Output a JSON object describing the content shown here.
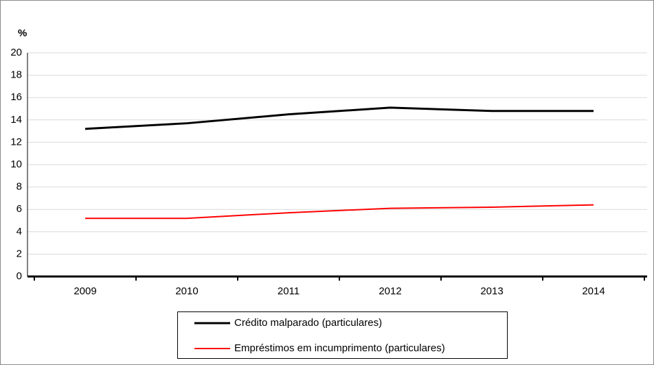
{
  "chart_data": {
    "type": "line",
    "y_label": "%",
    "categories": [
      "2009",
      "2010",
      "2011",
      "2012",
      "2013",
      "2014"
    ],
    "series": [
      {
        "name": "Crédito malparado (particulares)",
        "color": "#000000",
        "values": [
          13.2,
          13.7,
          14.5,
          15.1,
          14.8,
          14.8
        ]
      },
      {
        "name": "Empréstimos em incumprimento (particulares)",
        "color": "#ff0000",
        "values": [
          5.2,
          5.2,
          5.7,
          6.1,
          6.2,
          6.4
        ]
      }
    ],
    "ylim": [
      0,
      20
    ],
    "yticks": [
      0,
      2,
      4,
      6,
      8,
      10,
      12,
      14,
      16,
      18,
      20
    ],
    "grid": true
  }
}
